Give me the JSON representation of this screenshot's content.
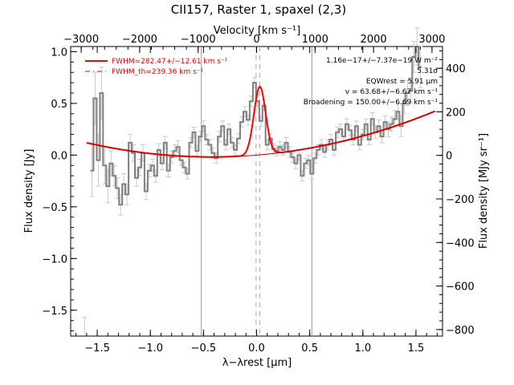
{
  "title": "CII157, Raster 1, spaxel (2,3)",
  "colors": {
    "data": "#808080",
    "errorbar": "#c8c8c8",
    "model": "#ff0000",
    "thin_model": "#c00000",
    "refline": "#999999",
    "dashed": "#aaaaaa",
    "legend_text": "#e00000"
  },
  "chart_data": {
    "type": "line",
    "xlabel": "λ−λrest [μm]",
    "ylabel": "Flux density [Jy]",
    "x2label": "Velocity [km s⁻¹]",
    "y2label": "Flux density [MJy sr⁻¹]",
    "xlim": [
      -1.75,
      1.75
    ],
    "ylim": [
      -1.75,
      1.05
    ],
    "x2lim": [
      -3180,
      3180
    ],
    "y2lim": [
      -830,
      500
    ],
    "xticks": [
      -1.5,
      -1.0,
      -0.5,
      0.0,
      0.5,
      1.0,
      1.5
    ],
    "xtick_labels": [
      "−1.5",
      "−1.0",
      "−0.5",
      "0.0",
      "0.5",
      "1.0",
      "1.5"
    ],
    "yticks": [
      -1.5,
      -1.0,
      -0.5,
      0.0,
      0.5,
      1.0
    ],
    "ytick_labels": [
      "−1.5",
      "−1.0",
      "−0.5",
      "0.0",
      "0.5",
      "1.0"
    ],
    "x2ticks": [
      -3000,
      -2000,
      -1000,
      0,
      1000,
      2000,
      3000
    ],
    "x2tick_labels": [
      "−3000",
      "−2000",
      "−1000",
      "0",
      "1000",
      "2000",
      "3000"
    ],
    "y2ticks": [
      -800,
      -600,
      -400,
      -200,
      0,
      200,
      400
    ],
    "y2tick_labels": [
      "−800",
      "−600",
      "−400",
      "−200",
      "0",
      "200",
      "400"
    ],
    "vlines_solid": [
      -0.52,
      0.52
    ],
    "vlines_dashed": [
      -0.005,
      0.03
    ],
    "series": [
      {
        "name": "data",
        "style": "step",
        "x": [
          -1.55,
          -1.52,
          -1.49,
          -1.46,
          -1.43,
          -1.4,
          -1.37,
          -1.34,
          -1.31,
          -1.28,
          -1.25,
          -1.22,
          -1.19,
          -1.16,
          -1.13,
          -1.1,
          -1.07,
          -1.04,
          -1.01,
          -0.98,
          -0.95,
          -0.92,
          -0.89,
          -0.86,
          -0.83,
          -0.8,
          -0.77,
          -0.74,
          -0.71,
          -0.68,
          -0.65,
          -0.62,
          -0.59,
          -0.56,
          -0.53,
          -0.5,
          -0.47,
          -0.44,
          -0.41,
          -0.38,
          -0.35,
          -0.32,
          -0.29,
          -0.26,
          -0.23,
          -0.2,
          -0.17,
          -0.14,
          -0.11,
          -0.08,
          -0.05,
          -0.02,
          0.01,
          0.04,
          0.07,
          0.1,
          0.13,
          0.16,
          0.19,
          0.22,
          0.25,
          0.28,
          0.31,
          0.34,
          0.37,
          0.4,
          0.43,
          0.46,
          0.49,
          0.52,
          0.55,
          0.58,
          0.61,
          0.64,
          0.67,
          0.7,
          0.73,
          0.76,
          0.79,
          0.82,
          0.85,
          0.88,
          0.91,
          0.94,
          0.97,
          1.0,
          1.03,
          1.06,
          1.09,
          1.12,
          1.15,
          1.18,
          1.21,
          1.24,
          1.27,
          1.3,
          1.33,
          1.36,
          1.39,
          1.42,
          1.45,
          1.48,
          1.51,
          1.54
        ],
        "y": [
          -0.15,
          0.55,
          -0.05,
          0.6,
          -0.1,
          -0.3,
          -0.08,
          -0.2,
          -0.32,
          -0.48,
          -0.28,
          -0.38,
          0.12,
          0.02,
          -0.22,
          -0.12,
          0.02,
          -0.35,
          -0.15,
          -0.1,
          -0.2,
          0.05,
          -0.08,
          0.12,
          -0.15,
          -0.02,
          0.04,
          0.08,
          -0.05,
          -0.12,
          -0.18,
          0.12,
          0.22,
          0.04,
          0.18,
          0.28,
          0.15,
          0.1,
          0.02,
          -0.03,
          0.18,
          0.28,
          0.1,
          0.25,
          0.12,
          0.05,
          0.16,
          0.32,
          0.42,
          0.34,
          0.52,
          0.7,
          0.52,
          0.33,
          0.48,
          0.1,
          0.16,
          0.06,
          0.04,
          0.08,
          0.05,
          0.12,
          0.03,
          -0.02,
          -0.08,
          0.0,
          -0.2,
          -0.08,
          -0.05,
          -0.18,
          -0.03,
          0.05,
          0.1,
          0.03,
          0.1,
          0.15,
          0.05,
          0.22,
          0.25,
          0.18,
          0.3,
          0.24,
          0.15,
          0.28,
          0.1,
          0.2,
          0.3,
          0.15,
          0.35,
          0.22,
          0.28,
          0.18,
          0.32,
          0.25,
          0.3,
          0.35,
          0.42,
          0.28,
          0.5,
          0.6,
          0.62,
          0.95,
          1.05,
          0.85
        ],
        "err": [
          0.25,
          0.25,
          0.25,
          0.25,
          0.18,
          0.16,
          0.12,
          0.1,
          0.1,
          0.1,
          0.1,
          0.1,
          0.08,
          0.08,
          0.08,
          0.08,
          0.08,
          0.08,
          0.06,
          0.06,
          0.06,
          0.06,
          0.06,
          0.06,
          0.06,
          0.06,
          0.06,
          0.06,
          0.05,
          0.05,
          0.05,
          0.05,
          0.05,
          0.05,
          0.05,
          0.05,
          0.05,
          0.05,
          0.05,
          0.05,
          0.05,
          0.05,
          0.05,
          0.05,
          0.05,
          0.05,
          0.05,
          0.05,
          0.05,
          0.05,
          0.05,
          0.05,
          0.05,
          0.05,
          0.05,
          0.05,
          0.05,
          0.05,
          0.05,
          0.05,
          0.05,
          0.05,
          0.05,
          0.05,
          0.05,
          0.05,
          0.05,
          0.05,
          0.05,
          0.05,
          0.05,
          0.05,
          0.05,
          0.05,
          0.05,
          0.05,
          0.05,
          0.05,
          0.05,
          0.05,
          0.05,
          0.05,
          0.05,
          0.05,
          0.05,
          0.05,
          0.05,
          0.05,
          0.06,
          0.06,
          0.06,
          0.06,
          0.06,
          0.07,
          0.07,
          0.08,
          0.08,
          0.1,
          0.1,
          0.12,
          0.12,
          0.15,
          0.18,
          0.2
        ]
      },
      {
        "name": "FWHM=282.47+/−12.61 km s⁻¹",
        "style": "thick-line",
        "model": {
          "baseline_c0": 0.0,
          "baseline_c1": 0.085,
          "baseline_c2": 0.1,
          "amplitude": 0.66,
          "center": 0.03,
          "sigma": 0.055,
          "x_start": -1.6,
          "x_end": 1.68
        }
      },
      {
        "name": "FWHM_th=239.36 km s⁻¹",
        "style": "thin-line"
      }
    ],
    "annotations": [
      "1.16e−17+/−7.37e−19 W m⁻²",
      "5.31σ",
      "EQWrest = 5.91 μm",
      "v = 63.68+/−6.67 km s⁻¹",
      "Broadening = 150.00+/−6.69 km s⁻¹"
    ],
    "error_corner_x": -1.62,
    "error_corner_y": -1.65,
    "error_corner_err": 0.08
  }
}
